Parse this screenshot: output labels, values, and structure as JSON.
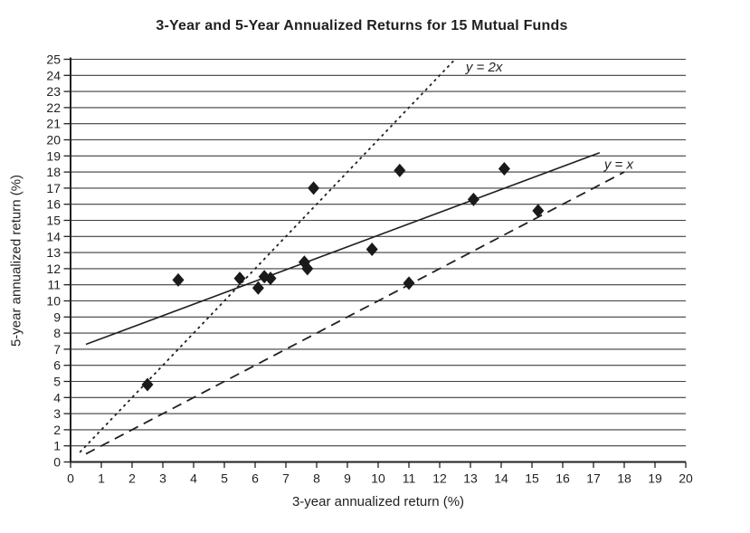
{
  "title": "3-Year and 5-Year Annualized Returns for 15 Mutual Funds",
  "chart_data": {
    "type": "scatter",
    "title": "3-Year and 5-Year Annualized Returns for 15 Mutual Funds",
    "xlabel": "3-year annualized return (%)",
    "ylabel": "5-year annualized return (%)",
    "xlim": [
      0,
      20
    ],
    "ylim": [
      0,
      25
    ],
    "x_ticks": [
      0,
      1,
      2,
      3,
      4,
      5,
      6,
      7,
      8,
      9,
      10,
      11,
      12,
      13,
      14,
      15,
      16,
      17,
      18,
      19,
      20
    ],
    "y_ticks": [
      0,
      1,
      2,
      3,
      4,
      5,
      6,
      7,
      8,
      9,
      10,
      11,
      12,
      13,
      14,
      15,
      16,
      17,
      18,
      19,
      20,
      21,
      22,
      23,
      24,
      25
    ],
    "grid": "horizontal",
    "legend_position": "none",
    "marker": "diamond",
    "series": [
      {
        "name": "mutual-funds",
        "points": [
          [
            2.5,
            4.8
          ],
          [
            3.5,
            11.3
          ],
          [
            5.5,
            11.4
          ],
          [
            6.1,
            10.8
          ],
          [
            6.3,
            11.5
          ],
          [
            6.5,
            11.4
          ],
          [
            7.6,
            12.4
          ],
          [
            7.7,
            12.0
          ],
          [
            7.9,
            17.0
          ],
          [
            9.8,
            13.2
          ],
          [
            10.7,
            18.1
          ],
          [
            11.0,
            11.1
          ],
          [
            13.1,
            16.3
          ],
          [
            14.1,
            18.2
          ],
          [
            15.2,
            15.6
          ]
        ]
      }
    ],
    "reference_lines": [
      {
        "name": "y-equals-2x",
        "label": "y = 2x",
        "style": "dotted",
        "from": [
          0.3,
          0.6
        ],
        "to": [
          12.5,
          25
        ],
        "label_pos": [
          12.85,
          24.25
        ]
      },
      {
        "name": "y-equals-x",
        "label": "y = x",
        "style": "dashed",
        "from": [
          0.5,
          0.5
        ],
        "to": [
          18,
          18
        ],
        "label_pos": [
          17.35,
          18.2
        ]
      },
      {
        "name": "trend-line",
        "label": "",
        "style": "solid",
        "from": [
          0.5,
          7.3
        ],
        "to": [
          17.2,
          19.2
        ],
        "label_pos": null
      }
    ],
    "colors": {
      "ink": "#231f20",
      "grid": "#3f3f3f",
      "axis": "#231f20",
      "marker_fill": "#1a1a1a",
      "background": "#ffffff"
    }
  }
}
